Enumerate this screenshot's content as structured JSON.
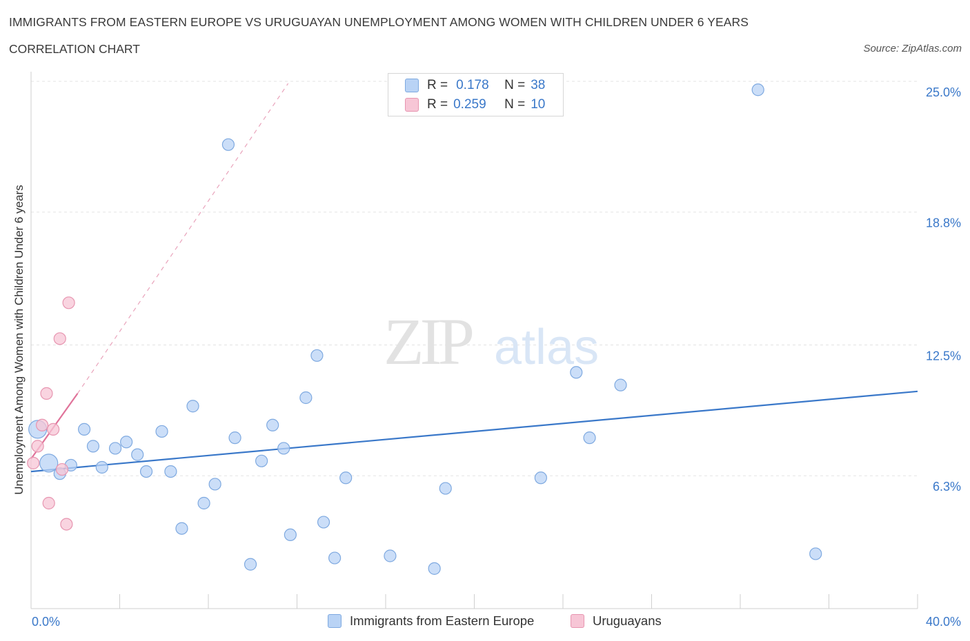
{
  "title": "IMMIGRANTS FROM EASTERN EUROPE VS URUGUAYAN UNEMPLOYMENT AMONG WOMEN WITH CHILDREN UNDER 6 YEARS",
  "subtitle": "CORRELATION CHART",
  "source": "Source: ZipAtlas.com",
  "watermark": {
    "zip": "ZIP",
    "atlas": "atlas"
  },
  "legend": {
    "rows": [
      {
        "r_label": "R =",
        "r_value": "0.178",
        "n_label": "N =",
        "n_value": "38",
        "color": "#b9d3f5",
        "border": "#7ea9e0"
      },
      {
        "r_label": "R =",
        "r_value": "0.259",
        "n_label": "N =",
        "n_value": "10",
        "color": "#f7c6d6",
        "border": "#e795b0"
      }
    ]
  },
  "bottom_legend": {
    "series_a": "Immigrants from Eastern Europe",
    "series_b": "Uruguayans"
  },
  "chart_data": {
    "type": "scatter",
    "title": "IMMIGRANTS FROM EASTERN EUROPE VS URUGUAYAN UNEMPLOYMENT AMONG WOMEN WITH CHILDREN UNDER 6 YEARS",
    "xlabel": "",
    "ylabel": "Unemployment Among Women with Children Under 6 years",
    "xlim": [
      0,
      40
    ],
    "ylim": [
      0,
      25
    ],
    "x_tick_labels": [
      "0.0%",
      "40.0%"
    ],
    "y_ticks": [
      6.3,
      12.5,
      18.8,
      25.0
    ],
    "y_tick_labels": [
      "6.3%",
      "12.5%",
      "18.8%",
      "25.0%"
    ],
    "grid": true,
    "legend_position": "top-center",
    "series": [
      {
        "name": "Immigrants from Eastern Europe",
        "color": "#b9d3f5",
        "stroke": "#7ea9e0",
        "trend_color": "#3a78c9",
        "trend": {
          "x": [
            0,
            40
          ],
          "y": [
            6.5,
            10.3
          ]
        },
        "points": [
          {
            "x": 0.3,
            "y": 8.5,
            "big": true
          },
          {
            "x": 0.8,
            "y": 6.9,
            "big": true
          },
          {
            "x": 1.3,
            "y": 6.4
          },
          {
            "x": 1.8,
            "y": 6.8
          },
          {
            "x": 2.4,
            "y": 8.5
          },
          {
            "x": 2.8,
            "y": 7.7
          },
          {
            "x": 3.2,
            "y": 6.7
          },
          {
            "x": 3.8,
            "y": 7.6
          },
          {
            "x": 4.3,
            "y": 7.9
          },
          {
            "x": 4.8,
            "y": 7.3
          },
          {
            "x": 5.2,
            "y": 6.5
          },
          {
            "x": 5.9,
            "y": 8.4
          },
          {
            "x": 6.3,
            "y": 6.5
          },
          {
            "x": 6.8,
            "y": 3.8
          },
          {
            "x": 7.3,
            "y": 9.6
          },
          {
            "x": 7.8,
            "y": 5.0
          },
          {
            "x": 8.3,
            "y": 5.9
          },
          {
            "x": 8.9,
            "y": 22.0
          },
          {
            "x": 9.2,
            "y": 8.1
          },
          {
            "x": 9.9,
            "y": 2.1
          },
          {
            "x": 10.4,
            "y": 7.0
          },
          {
            "x": 10.9,
            "y": 8.7
          },
          {
            "x": 11.4,
            "y": 7.6
          },
          {
            "x": 11.7,
            "y": 3.5
          },
          {
            "x": 12.4,
            "y": 10.0
          },
          {
            "x": 12.9,
            "y": 12.0
          },
          {
            "x": 13.2,
            "y": 4.1
          },
          {
            "x": 13.7,
            "y": 2.4
          },
          {
            "x": 14.2,
            "y": 6.2
          },
          {
            "x": 16.2,
            "y": 2.5
          },
          {
            "x": 18.2,
            "y": 1.9
          },
          {
            "x": 18.7,
            "y": 5.7
          },
          {
            "x": 23.0,
            "y": 6.2
          },
          {
            "x": 24.6,
            "y": 11.2
          },
          {
            "x": 25.2,
            "y": 8.1
          },
          {
            "x": 26.6,
            "y": 10.6
          },
          {
            "x": 32.8,
            "y": 24.6
          },
          {
            "x": 35.4,
            "y": 2.6
          }
        ]
      },
      {
        "name": "Uruguayans",
        "color": "#f7c6d6",
        "stroke": "#e795b0",
        "trend_color": "#e0739a",
        "trend": {
          "x": [
            0,
            2.1
          ],
          "y": [
            7.1,
            10.2
          ]
        },
        "trend_extended": {
          "x": [
            2.1,
            11.6
          ],
          "y": [
            10.2,
            24.9
          ]
        },
        "points": [
          {
            "x": 0.1,
            "y": 6.9
          },
          {
            "x": 0.3,
            "y": 7.7
          },
          {
            "x": 0.5,
            "y": 8.7
          },
          {
            "x": 0.7,
            "y": 10.2
          },
          {
            "x": 0.8,
            "y": 5.0
          },
          {
            "x": 1.0,
            "y": 8.5
          },
          {
            "x": 1.3,
            "y": 12.8
          },
          {
            "x": 1.4,
            "y": 6.6
          },
          {
            "x": 1.6,
            "y": 4.0
          },
          {
            "x": 1.7,
            "y": 14.5
          }
        ]
      }
    ]
  }
}
